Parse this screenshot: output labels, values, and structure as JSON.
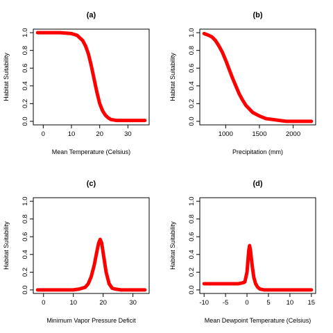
{
  "chart_data": [
    {
      "type": "line",
      "title": "(a)",
      "xlabel": "Mean Temperature (Celsius)",
      "ylabel": "Habitat Suitability",
      "xlim": [
        -2,
        36
      ],
      "ylim": [
        0,
        1
      ],
      "xticks": [
        0,
        10,
        20,
        30
      ],
      "yticks": [
        0.0,
        0.2,
        0.4,
        0.6,
        0.8,
        1.0
      ],
      "grid": false,
      "line_color": "#ff0000",
      "series": [
        {
          "x": [
            -2,
            6,
            10,
            12,
            14,
            15,
            16,
            17,
            18,
            19,
            20,
            21,
            22,
            23,
            24,
            26,
            30,
            36
          ],
          "y": [
            1.0,
            1.0,
            0.99,
            0.97,
            0.91,
            0.85,
            0.76,
            0.63,
            0.48,
            0.33,
            0.2,
            0.12,
            0.07,
            0.04,
            0.02,
            0.01,
            0.01,
            0.01
          ]
        }
      ]
    },
    {
      "type": "line",
      "title": "(b)",
      "xlabel": "Precipitation (mm)",
      "ylabel": "Habitat Suitability",
      "xlim": [
        680,
        2270
      ],
      "ylim": [
        0,
        1
      ],
      "xticks": [
        1000,
        1500,
        2000
      ],
      "yticks": [
        0.0,
        0.2,
        0.4,
        0.6,
        0.8,
        1.0
      ],
      "grid": false,
      "line_color": "#ff0000",
      "series": [
        {
          "x": [
            680,
            750,
            800,
            850,
            900,
            950,
            1000,
            1050,
            1100,
            1150,
            1200,
            1250,
            1300,
            1400,
            1500,
            1600,
            1700,
            1800,
            1900,
            2000,
            2270
          ],
          "y": [
            0.99,
            0.97,
            0.95,
            0.91,
            0.85,
            0.78,
            0.69,
            0.59,
            0.49,
            0.4,
            0.31,
            0.24,
            0.18,
            0.1,
            0.06,
            0.03,
            0.02,
            0.01,
            0.0,
            0.0,
            0.0
          ]
        }
      ]
    },
    {
      "type": "line",
      "title": "(c)",
      "xlabel": "Minimum Vapor Pressure Deficit",
      "ylabel": "Habitat Suitability",
      "xlim": [
        -2,
        34
      ],
      "ylim": [
        0,
        1
      ],
      "xticks": [
        0,
        10,
        20,
        30
      ],
      "yticks": [
        0.0,
        0.2,
        0.4,
        0.6,
        0.8,
        1.0
      ],
      "grid": false,
      "line_color": "#ff0000",
      "series": [
        {
          "x": [
            -2,
            10,
            12,
            14,
            15,
            16,
            17,
            18,
            18.5,
            19,
            19.5,
            20,
            21,
            22,
            23,
            24,
            26,
            34
          ],
          "y": [
            0.0,
            0.0,
            0.01,
            0.03,
            0.07,
            0.15,
            0.28,
            0.45,
            0.53,
            0.57,
            0.53,
            0.42,
            0.2,
            0.07,
            0.02,
            0.01,
            0.0,
            0.0
          ]
        }
      ]
    },
    {
      "type": "line",
      "title": "(d)",
      "xlabel": "Mean Dewpoint Temperature (Celsius)",
      "ylabel": "Habitat Suitability",
      "xlim": [
        -10,
        15
      ],
      "ylim": [
        0,
        1
      ],
      "xticks": [
        -10,
        -5,
        0,
        5,
        10,
        15
      ],
      "yticks": [
        0.0,
        0.2,
        0.4,
        0.6,
        0.8,
        1.0
      ],
      "grid": false,
      "line_color": "#ff0000",
      "series": [
        {
          "x": [
            -10,
            -2,
            -1,
            -0.5,
            0,
            0.2,
            0.4,
            0.6,
            0.8,
            1.0,
            1.3,
            1.6,
            2.0,
            2.5,
            3.0,
            4.0,
            6.0,
            15.0
          ],
          "y": [
            0.07,
            0.07,
            0.08,
            0.09,
            0.2,
            0.32,
            0.44,
            0.5,
            0.45,
            0.36,
            0.24,
            0.14,
            0.07,
            0.03,
            0.01,
            0.0,
            0.0,
            0.0
          ]
        }
      ]
    }
  ]
}
